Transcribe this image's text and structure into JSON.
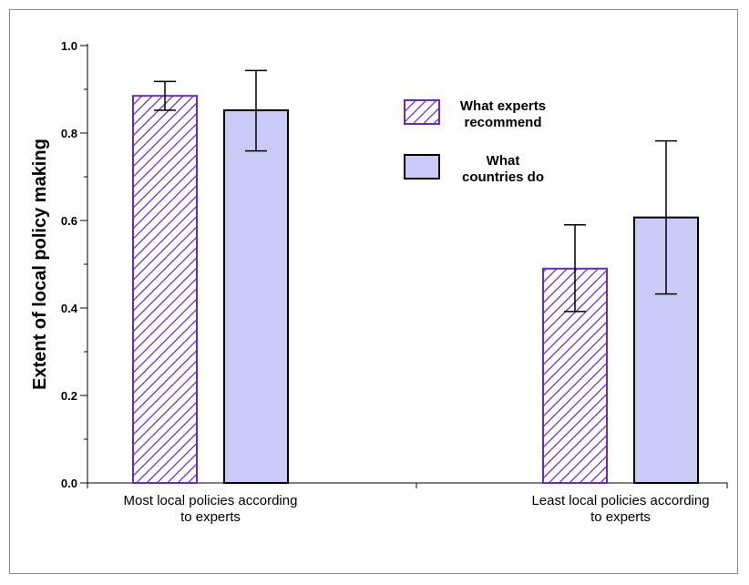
{
  "chart_data": {
    "type": "bar",
    "title": "",
    "xlabel": "",
    "ylabel": "Extent of local policy making",
    "ylim": [
      0,
      1.0
    ],
    "y_ticks": [
      "0.0",
      "0.2",
      "0.4",
      "0.6",
      "0.8",
      "1.0"
    ],
    "categories": [
      [
        "Most local policies according",
        "to experts"
      ],
      [
        "Least local policies according",
        "to experts"
      ]
    ],
    "series": [
      {
        "name": [
          "What experts",
          "recommend"
        ],
        "style": "hatched",
        "color": "#6a2ab8",
        "values": [
          0.885,
          0.49
        ],
        "error_low": [
          0.852,
          0.392
        ],
        "error_high": [
          0.918,
          0.59
        ]
      },
      {
        "name": [
          "What",
          "countries do"
        ],
        "style": "solid",
        "color": "#c9caf5",
        "values": [
          0.852,
          0.607
        ],
        "error_low": [
          0.759,
          0.432
        ],
        "error_high": [
          0.943,
          0.782
        ]
      }
    ],
    "grid": false,
    "legend_position": "top-right"
  }
}
